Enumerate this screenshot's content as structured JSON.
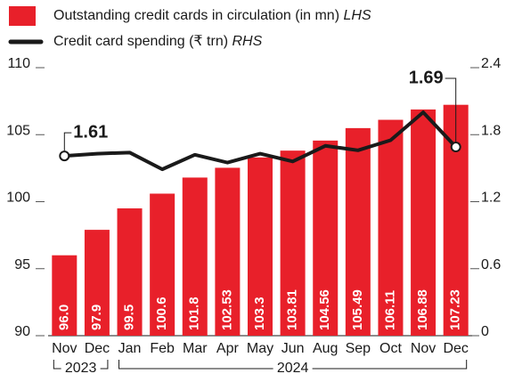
{
  "chart_data": {
    "type": "bar_line",
    "categories": [
      "Nov",
      "Dec",
      "Jan",
      "Feb",
      "Mar",
      "Apr",
      "May",
      "Jun",
      "Aug",
      "Sep",
      "Oct",
      "Nov",
      "Dec"
    ],
    "year_groups": [
      {
        "label": "2023",
        "start": 0,
        "end": 1
      },
      {
        "label": "2024",
        "start": 2,
        "end": 12
      }
    ],
    "series": [
      {
        "name": "Outstanding credit cards in circulation (in mn)",
        "axis_tag": "LHS",
        "type": "bar",
        "color": "#e8202a",
        "values": [
          96.0,
          97.9,
          99.5,
          100.6,
          101.8,
          102.53,
          103.3,
          103.81,
          104.56,
          105.49,
          106.11,
          106.88,
          107.23
        ],
        "value_labels": [
          "96.0",
          "97.9",
          "99.5",
          "100.6",
          "101.8",
          "102.53",
          "103.3",
          "103.81",
          "104.56",
          "105.49",
          "106.11",
          "106.88",
          "107.23"
        ]
      },
      {
        "name": "Credit card spending (₹ trn)",
        "axis_tag": "RHS",
        "type": "line",
        "axis": "y2",
        "color": "#1a1a1a",
        "values": [
          1.61,
          1.63,
          1.64,
          1.49,
          1.62,
          1.55,
          1.63,
          1.56,
          1.7,
          1.66,
          1.75,
          2.0,
          1.69
        ]
      }
    ],
    "ylim": [
      90,
      110
    ],
    "yticks": [
      90,
      95,
      100,
      105,
      110
    ],
    "y2lim": [
      0,
      2.4
    ],
    "y2ticks": [
      0,
      0.6,
      1.2,
      1.8,
      2.4
    ]
  }
}
